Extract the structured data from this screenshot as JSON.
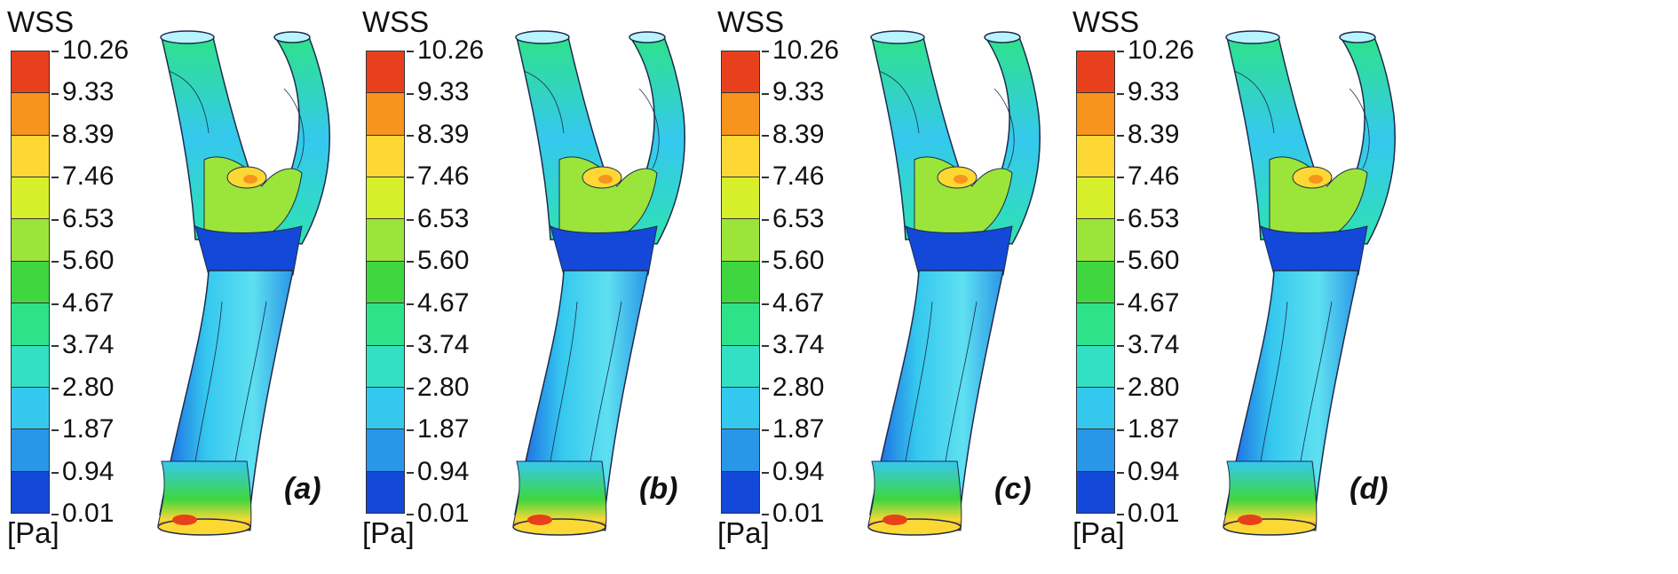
{
  "legend": {
    "title": "WSS",
    "unit": "[Pa]",
    "ticks": [
      "10.26",
      "9.33",
      "8.39",
      "7.46",
      "6.53",
      "5.60",
      "4.67",
      "3.74",
      "2.80",
      "1.87",
      "0.94",
      "0.01"
    ],
    "band_colors": [
      "#e8401c",
      "#f7941d",
      "#fdd835",
      "#d7ef2a",
      "#9be53a",
      "#3fd63f",
      "#2ee28a",
      "#32e0c4",
      "#35c8ef",
      "#2a96e8",
      "#1348d8"
    ]
  },
  "panels": [
    {
      "label": "(a)"
    },
    {
      "label": "(b)"
    },
    {
      "label": "(c)"
    },
    {
      "label": "(d)"
    }
  ]
}
